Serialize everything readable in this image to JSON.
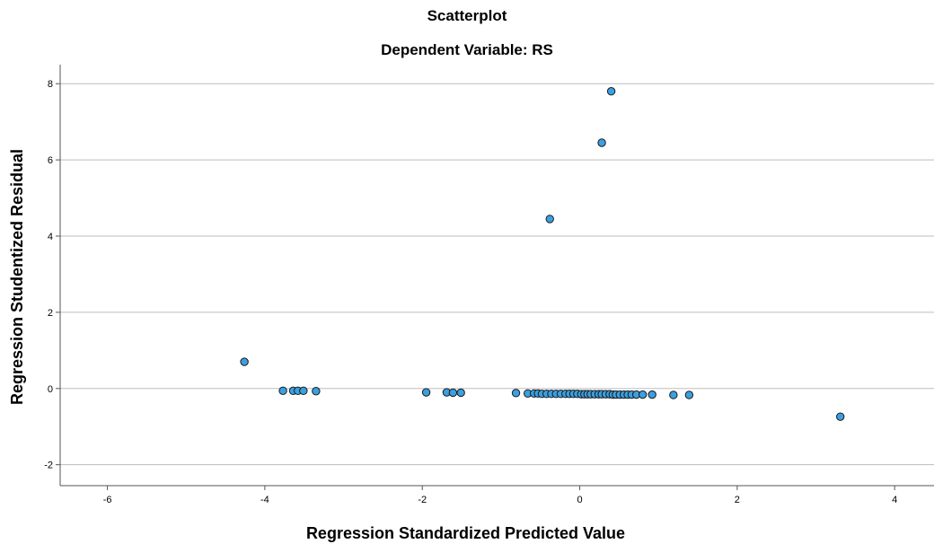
{
  "chart_data": {
    "type": "scatter",
    "title": "Scatterplot",
    "subtitle": "Dependent Variable: RS",
    "xlabel": "Regression Standardized Predicted Value",
    "ylabel": "Regression Studentized Residual",
    "xlim": [
      -6.6,
      4.5
    ],
    "ylim": [
      -2.55,
      8.5
    ],
    "xticks": [
      -6,
      -4,
      -2,
      0,
      2,
      4
    ],
    "yticks": [
      -2,
      0,
      2,
      4,
      6,
      8
    ],
    "grid": "horizontal",
    "colors": {
      "marker_fill": "#3aa0e0",
      "marker_stroke": "#1a1a1a",
      "grid": "#bdbdbd",
      "axis": "#555555"
    },
    "points": [
      {
        "x": 0.4,
        "y": 7.8
      },
      {
        "x": 0.28,
        "y": 6.45
      },
      {
        "x": -0.38,
        "y": 4.45
      },
      {
        "x": -4.26,
        "y": 0.7
      },
      {
        "x": -3.77,
        "y": -0.06
      },
      {
        "x": -3.64,
        "y": -0.06
      },
      {
        "x": -3.58,
        "y": -0.06
      },
      {
        "x": -3.51,
        "y": -0.06
      },
      {
        "x": -3.35,
        "y": -0.07
      },
      {
        "x": -1.95,
        "y": -0.1
      },
      {
        "x": -1.69,
        "y": -0.1
      },
      {
        "x": -1.61,
        "y": -0.11
      },
      {
        "x": -1.51,
        "y": -0.11
      },
      {
        "x": -0.81,
        "y": -0.12
      },
      {
        "x": -0.66,
        "y": -0.13
      },
      {
        "x": -0.58,
        "y": -0.13
      },
      {
        "x": -0.53,
        "y": -0.13
      },
      {
        "x": -0.48,
        "y": -0.14
      },
      {
        "x": -0.42,
        "y": -0.14
      },
      {
        "x": -0.36,
        "y": -0.14
      },
      {
        "x": -0.3,
        "y": -0.14
      },
      {
        "x": -0.24,
        "y": -0.14
      },
      {
        "x": -0.18,
        "y": -0.14
      },
      {
        "x": -0.13,
        "y": -0.14
      },
      {
        "x": -0.08,
        "y": -0.14
      },
      {
        "x": -0.03,
        "y": -0.14
      },
      {
        "x": 0.02,
        "y": -0.15
      },
      {
        "x": 0.06,
        "y": -0.15
      },
      {
        "x": 0.1,
        "y": -0.15
      },
      {
        "x": 0.14,
        "y": -0.15
      },
      {
        "x": 0.19,
        "y": -0.15
      },
      {
        "x": 0.24,
        "y": -0.15
      },
      {
        "x": 0.28,
        "y": -0.15
      },
      {
        "x": 0.33,
        "y": -0.15
      },
      {
        "x": 0.38,
        "y": -0.15
      },
      {
        "x": 0.42,
        "y": -0.16
      },
      {
        "x": 0.46,
        "y": -0.16
      },
      {
        "x": 0.51,
        "y": -0.16
      },
      {
        "x": 0.56,
        "y": -0.16
      },
      {
        "x": 0.61,
        "y": -0.16
      },
      {
        "x": 0.66,
        "y": -0.16
      },
      {
        "x": 0.72,
        "y": -0.16
      },
      {
        "x": 0.8,
        "y": -0.16
      },
      {
        "x": 0.92,
        "y": -0.16
      },
      {
        "x": 1.19,
        "y": -0.17
      },
      {
        "x": 1.39,
        "y": -0.17
      },
      {
        "x": 3.31,
        "y": -0.74
      }
    ]
  }
}
